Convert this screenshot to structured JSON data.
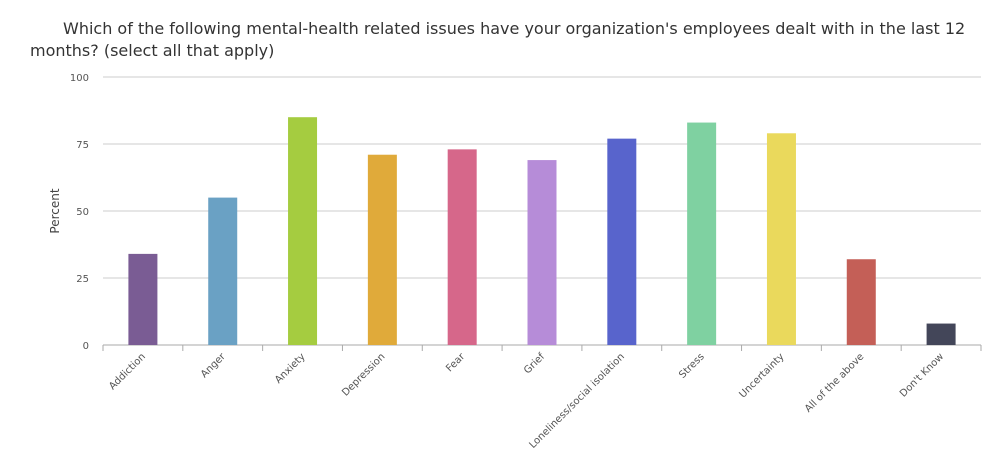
{
  "chart_data": {
    "type": "bar",
    "title": "Which of the following mental-health related issues have your organization's employees dealt with in the last 12 months? (select all that apply)",
    "ylabel": "Percent",
    "xlabel": "",
    "ylim": [
      0,
      100
    ],
    "yticks": [
      0,
      25,
      50,
      75,
      100
    ],
    "grid": true,
    "legend": "none",
    "categories": [
      "Addiction",
      "Anger",
      "Anxiety",
      "Depression",
      "Fear",
      "Grief",
      "Loneliness/social isolation",
      "Stress",
      "Uncertainty",
      "All of the above",
      "Don't Know"
    ],
    "values": [
      34,
      55,
      85,
      71,
      73,
      69,
      77,
      83,
      79,
      32,
      8
    ],
    "colors": [
      "#7a5c94",
      "#6aa1c4",
      "#a5cc40",
      "#e0aa3a",
      "#d6678a",
      "#b68cd8",
      "#5864cc",
      "#7fd1a1",
      "#ead95c",
      "#c45f57",
      "#434659"
    ]
  }
}
